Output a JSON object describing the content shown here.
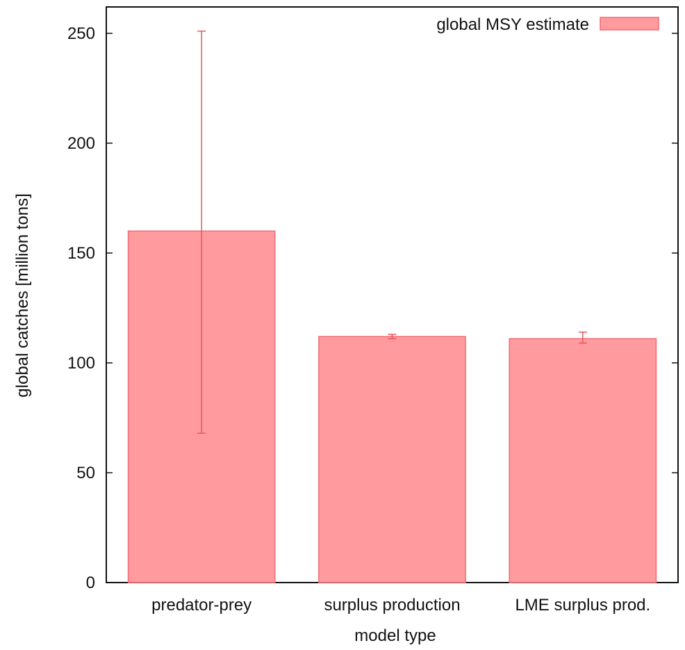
{
  "chart_data": {
    "type": "bar",
    "title": "",
    "xlabel": "model type",
    "ylabel": "global catches [million tons]",
    "categories": [
      "predator-prey",
      "surplus production",
      "LME surplus prod."
    ],
    "series": [
      {
        "name": "global MSY estimate",
        "values": [
          160,
          112,
          111
        ],
        "error_low": [
          68,
          111,
          109
        ],
        "error_high": [
          251,
          113,
          114
        ]
      }
    ],
    "ylim": [
      0,
      262
    ],
    "yticks": [
      0,
      50,
      100,
      150,
      200,
      250
    ],
    "grid": false,
    "legend_position": "top-right",
    "colors": {
      "bar_fill": "#ff9a9e",
      "bar_stroke": "#f06d74",
      "error_bar": "#e8565e",
      "axis": "#111111"
    }
  }
}
